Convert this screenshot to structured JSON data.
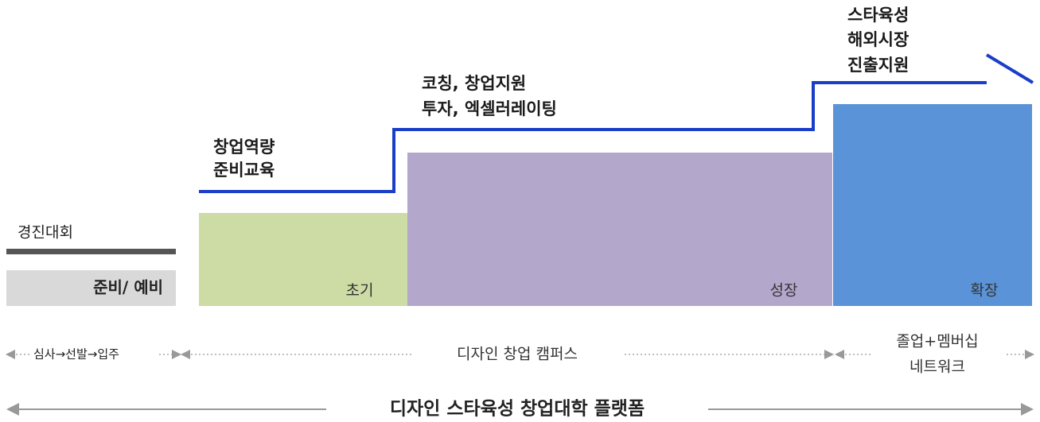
{
  "side": {
    "contest": "경진대회",
    "prep": "준비/ 예비"
  },
  "stages": [
    {
      "name": "초기",
      "support": [
        "창업역량",
        "준비교육"
      ]
    },
    {
      "name": "성장",
      "support": [
        "코칭, 창업지원",
        "투자, 엑셀러레이팅"
      ]
    },
    {
      "name": "확장",
      "support": [
        "스타육성",
        "해외시장",
        "진출지원"
      ]
    }
  ],
  "phases": {
    "selection": "심사→선발→입주",
    "campus": "디자인 창업 캠퍼스",
    "alumni": [
      "졸업+멤버십",
      "네트워크"
    ]
  },
  "platform": "디자인 스타육성 창업대학 플랫폼"
}
